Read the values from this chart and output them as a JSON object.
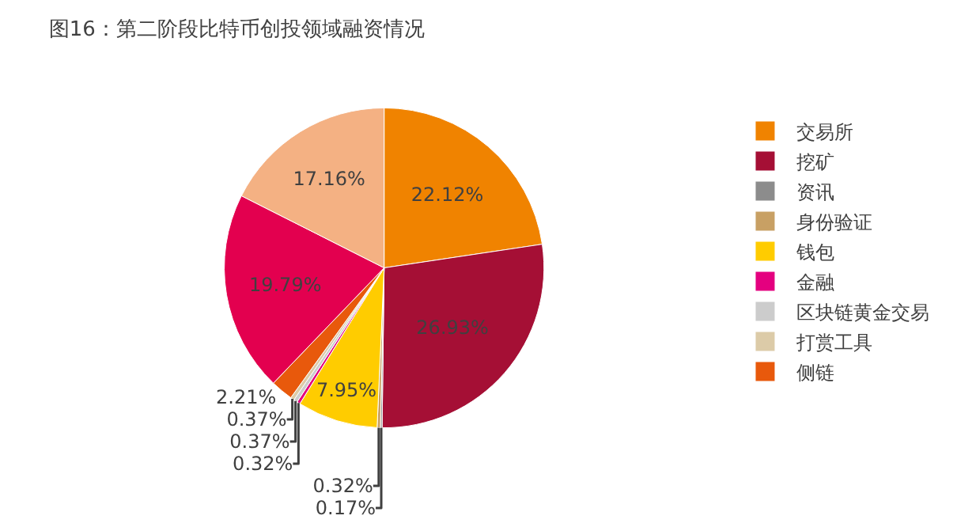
{
  "chart_data": {
    "type": "pie",
    "title": "图16：第二阶段比特币创投领域融资情况",
    "categories": [
      "交易所",
      "挖矿",
      "资讯",
      "身份验证",
      "钱包",
      "金融",
      "区块链黄金交易",
      "打赏工具",
      "侧链",
      null,
      null
    ],
    "values": [
      22.12,
      26.93,
      0.17,
      0.32,
      7.95,
      0.32,
      0.37,
      0.37,
      2.21,
      19.79,
      17.16
    ],
    "value_labels": [
      "22.12%",
      "26.93%",
      "0.17%",
      "0.32%",
      "7.95%",
      "0.32%",
      "0.37%",
      "0.37%",
      "2.21%",
      "19.79%",
      "17.16%"
    ],
    "colors": [
      "#f08300",
      "#a50f35",
      "#8c8c8c",
      "#c8a064",
      "#ffcc00",
      "#e4007f",
      "#cccccc",
      "#dccba8",
      "#e8590c",
      "#e3004f",
      "#f4b183"
    ],
    "legend": "right"
  }
}
